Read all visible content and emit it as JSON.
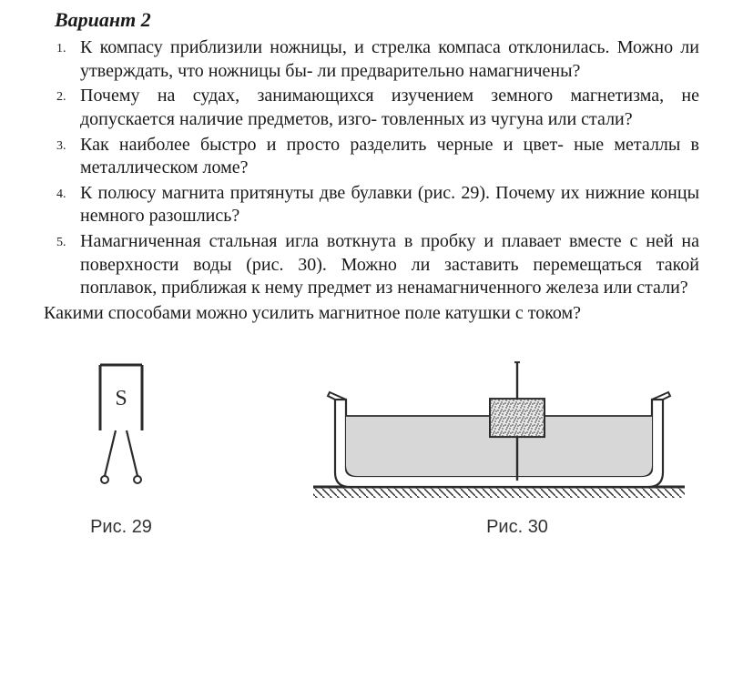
{
  "variant_title": "Вариант 2",
  "questions": [
    "К компасу приблизили ножницы, и стрелка компаса отклонилась. Можно ли утверждать, что ножницы бы- ли предварительно намагничены?",
    "Почему на судах, занимающихся изучением земного магнетизма, не допускается наличие предметов, изго- товленных из чугуна или стали?",
    "Как наиболее быстро и просто разделить черные и цвет- ные металлы в металлическом ломе?",
    "К полюсу магнита притянуты две булавки (рис. 29). Почему их нижние концы немного разошлись?",
    "Намагниченная стальная игла воткнута в пробку и плавает вместе с ней на поверхности воды (рис. 30). Можно ли заставить перемещаться такой поплавок, приближая к нему предмет из ненамагниченного железа или стали?"
  ],
  "tail_question": "Какими способами можно усилить магнитное поле катушки с током?",
  "fig29": {
    "caption": "Рис. 29",
    "letter": "S",
    "stroke": "#2b2b2b",
    "fill": "#ffffff",
    "text_color": "#2b2b2b"
  },
  "fig30": {
    "caption": "Рис. 30",
    "stroke": "#2b2b2b",
    "cork_fill": "#e9e9e9",
    "water_fill": "#d7d7d7",
    "bg": "#ffffff",
    "hatch": "#2b2b2b"
  }
}
